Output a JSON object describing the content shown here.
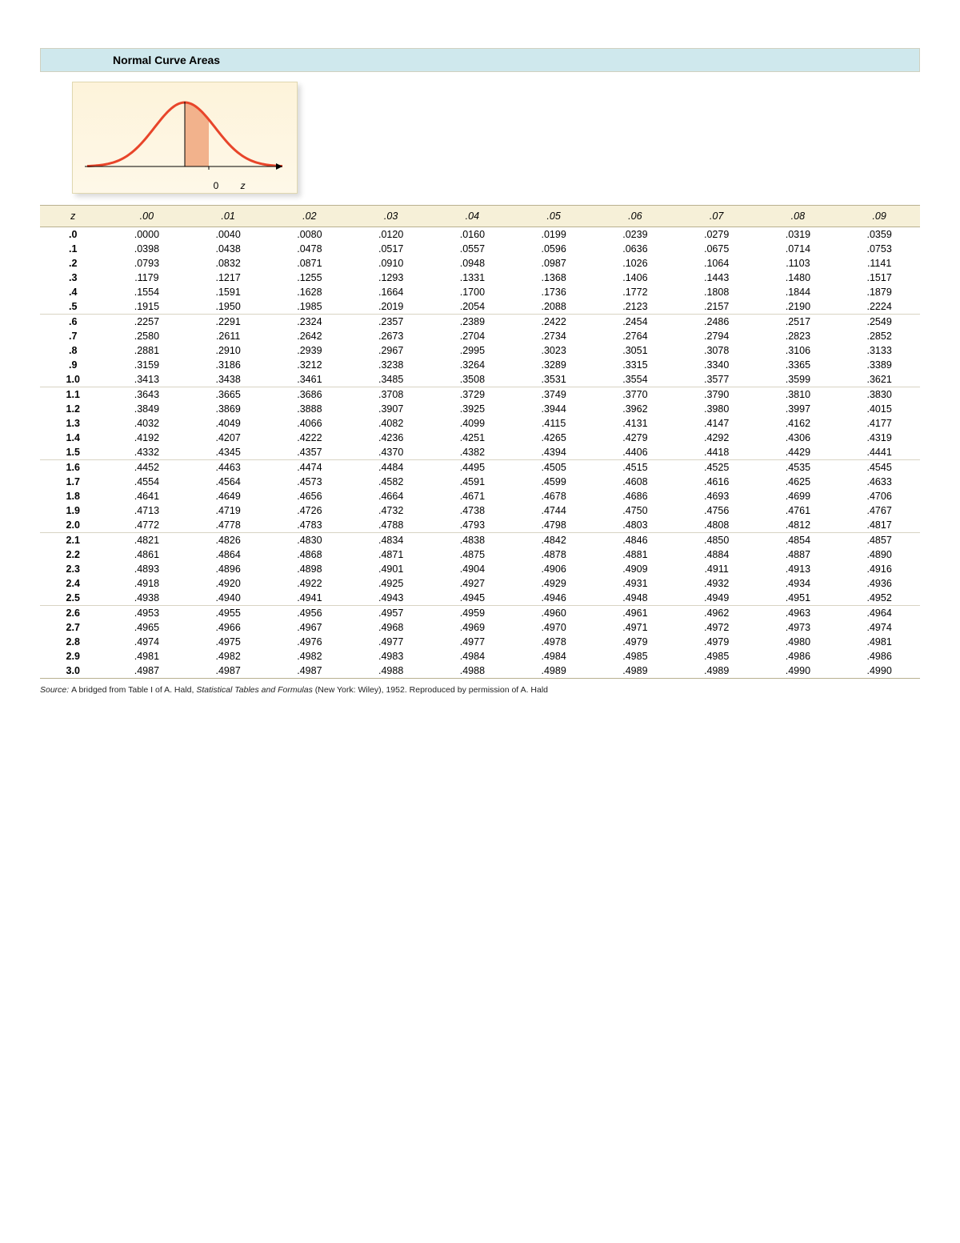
{
  "title": "Normal Curve Areas",
  "curve": {
    "line_color": "#e8452a",
    "line_width": 3,
    "fill_color": "#f2b28c",
    "bg_gradient_top": "#fdf3da",
    "bg_gradient_bottom": "#fef8e8",
    "axis_color": "#000000",
    "label_0": "0",
    "label_z": "z"
  },
  "table": {
    "header_bg": "#f6f0d8",
    "border_color": "#b8b090",
    "group_border_color": "#d8d4c4",
    "z_label": "z",
    "columns": [
      ".00",
      ".01",
      ".02",
      ".03",
      ".04",
      ".05",
      ".06",
      ".07",
      ".08",
      ".09"
    ],
    "groups": [
      [
        {
          "z": ".0",
          "v": [
            ".0000",
            ".0040",
            ".0080",
            ".0120",
            ".0160",
            ".0199",
            ".0239",
            ".0279",
            ".0319",
            ".0359"
          ]
        },
        {
          "z": ".1",
          "v": [
            ".0398",
            ".0438",
            ".0478",
            ".0517",
            ".0557",
            ".0596",
            ".0636",
            ".0675",
            ".0714",
            ".0753"
          ]
        },
        {
          "z": ".2",
          "v": [
            ".0793",
            ".0832",
            ".0871",
            ".0910",
            ".0948",
            ".0987",
            ".1026",
            ".1064",
            ".1103",
            ".1141"
          ]
        },
        {
          "z": ".3",
          "v": [
            ".1179",
            ".1217",
            ".1255",
            ".1293",
            ".1331",
            ".1368",
            ".1406",
            ".1443",
            ".1480",
            ".1517"
          ]
        },
        {
          "z": ".4",
          "v": [
            ".1554",
            ".1591",
            ".1628",
            ".1664",
            ".1700",
            ".1736",
            ".1772",
            ".1808",
            ".1844",
            ".1879"
          ]
        },
        {
          "z": ".5",
          "v": [
            ".1915",
            ".1950",
            ".1985",
            ".2019",
            ".2054",
            ".2088",
            ".2123",
            ".2157",
            ".2190",
            ".2224"
          ]
        }
      ],
      [
        {
          "z": ".6",
          "v": [
            ".2257",
            ".2291",
            ".2324",
            ".2357",
            ".2389",
            ".2422",
            ".2454",
            ".2486",
            ".2517",
            ".2549"
          ]
        },
        {
          "z": ".7",
          "v": [
            ".2580",
            ".2611",
            ".2642",
            ".2673",
            ".2704",
            ".2734",
            ".2764",
            ".2794",
            ".2823",
            ".2852"
          ]
        },
        {
          "z": ".8",
          "v": [
            ".2881",
            ".2910",
            ".2939",
            ".2967",
            ".2995",
            ".3023",
            ".3051",
            ".3078",
            ".3106",
            ".3133"
          ]
        },
        {
          "z": ".9",
          "v": [
            ".3159",
            ".3186",
            ".3212",
            ".3238",
            ".3264",
            ".3289",
            ".3315",
            ".3340",
            ".3365",
            ".3389"
          ]
        },
        {
          "z": "1.0",
          "v": [
            ".3413",
            ".3438",
            ".3461",
            ".3485",
            ".3508",
            ".3531",
            ".3554",
            ".3577",
            ".3599",
            ".3621"
          ]
        }
      ],
      [
        {
          "z": "1.1",
          "v": [
            ".3643",
            ".3665",
            ".3686",
            ".3708",
            ".3729",
            ".3749",
            ".3770",
            ".3790",
            ".3810",
            ".3830"
          ]
        },
        {
          "z": "1.2",
          "v": [
            ".3849",
            ".3869",
            ".3888",
            ".3907",
            ".3925",
            ".3944",
            ".3962",
            ".3980",
            ".3997",
            ".4015"
          ]
        },
        {
          "z": "1.3",
          "v": [
            ".4032",
            ".4049",
            ".4066",
            ".4082",
            ".4099",
            ".4115",
            ".4131",
            ".4147",
            ".4162",
            ".4177"
          ]
        },
        {
          "z": "1.4",
          "v": [
            ".4192",
            ".4207",
            ".4222",
            ".4236",
            ".4251",
            ".4265",
            ".4279",
            ".4292",
            ".4306",
            ".4319"
          ]
        },
        {
          "z": "1.5",
          "v": [
            ".4332",
            ".4345",
            ".4357",
            ".4370",
            ".4382",
            ".4394",
            ".4406",
            ".4418",
            ".4429",
            ".4441"
          ]
        }
      ],
      [
        {
          "z": "1.6",
          "v": [
            ".4452",
            ".4463",
            ".4474",
            ".4484",
            ".4495",
            ".4505",
            ".4515",
            ".4525",
            ".4535",
            ".4545"
          ]
        },
        {
          "z": "1.7",
          "v": [
            ".4554",
            ".4564",
            ".4573",
            ".4582",
            ".4591",
            ".4599",
            ".4608",
            ".4616",
            ".4625",
            ".4633"
          ]
        },
        {
          "z": "1.8",
          "v": [
            ".4641",
            ".4649",
            ".4656",
            ".4664",
            ".4671",
            ".4678",
            ".4686",
            ".4693",
            ".4699",
            ".4706"
          ]
        },
        {
          "z": "1.9",
          "v": [
            ".4713",
            ".4719",
            ".4726",
            ".4732",
            ".4738",
            ".4744",
            ".4750",
            ".4756",
            ".4761",
            ".4767"
          ]
        },
        {
          "z": "2.0",
          "v": [
            ".4772",
            ".4778",
            ".4783",
            ".4788",
            ".4793",
            ".4798",
            ".4803",
            ".4808",
            ".4812",
            ".4817"
          ]
        }
      ],
      [
        {
          "z": "2.1",
          "v": [
            ".4821",
            ".4826",
            ".4830",
            ".4834",
            ".4838",
            ".4842",
            ".4846",
            ".4850",
            ".4854",
            ".4857"
          ]
        },
        {
          "z": "2.2",
          "v": [
            ".4861",
            ".4864",
            ".4868",
            ".4871",
            ".4875",
            ".4878",
            ".4881",
            ".4884",
            ".4887",
            ".4890"
          ]
        },
        {
          "z": "2.3",
          "v": [
            ".4893",
            ".4896",
            ".4898",
            ".4901",
            ".4904",
            ".4906",
            ".4909",
            ".4911",
            ".4913",
            ".4916"
          ]
        },
        {
          "z": "2.4",
          "v": [
            ".4918",
            ".4920",
            ".4922",
            ".4925",
            ".4927",
            ".4929",
            ".4931",
            ".4932",
            ".4934",
            ".4936"
          ]
        },
        {
          "z": "2.5",
          "v": [
            ".4938",
            ".4940",
            ".4941",
            ".4943",
            ".4945",
            ".4946",
            ".4948",
            ".4949",
            ".4951",
            ".4952"
          ]
        }
      ],
      [
        {
          "z": "2.6",
          "v": [
            ".4953",
            ".4955",
            ".4956",
            ".4957",
            ".4959",
            ".4960",
            ".4961",
            ".4962",
            ".4963",
            ".4964"
          ]
        },
        {
          "z": "2.7",
          "v": [
            ".4965",
            ".4966",
            ".4967",
            ".4968",
            ".4969",
            ".4970",
            ".4971",
            ".4972",
            ".4973",
            ".4974"
          ]
        },
        {
          "z": "2.8",
          "v": [
            ".4974",
            ".4975",
            ".4976",
            ".4977",
            ".4977",
            ".4978",
            ".4979",
            ".4979",
            ".4980",
            ".4981"
          ]
        },
        {
          "z": "2.9",
          "v": [
            ".4981",
            ".4982",
            ".4982",
            ".4983",
            ".4984",
            ".4984",
            ".4985",
            ".4985",
            ".4986",
            ".4986"
          ]
        },
        {
          "z": "3.0",
          "v": [
            ".4987",
            ".4987",
            ".4987",
            ".4988",
            ".4988",
            ".4989",
            ".4989",
            ".4989",
            ".4990",
            ".4990"
          ]
        }
      ]
    ]
  },
  "source": {
    "prefix": "Source: ",
    "text1": "A bridged from Table I of A. Hald, ",
    "italic": "Statistical Tables and Formulas",
    "text2": " (New York: Wiley), 1952. Reproduced by permission of A. Hald"
  }
}
